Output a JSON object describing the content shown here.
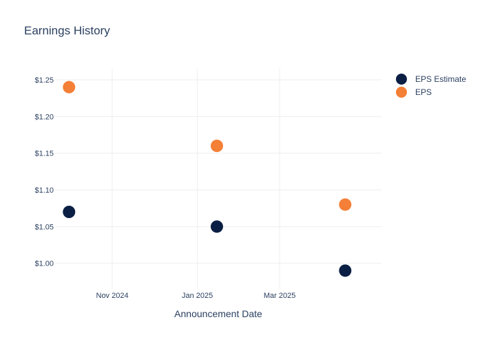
{
  "chart_data": {
    "type": "scatter",
    "title": "Earnings History",
    "xlabel": "Announcement Date",
    "ylabel": "",
    "x_ticks": [
      "2024-11-01",
      "2025-01-01",
      "2025-03-01"
    ],
    "x_tick_labels": [
      "Nov 2024",
      "Jan 2025",
      "Mar 2025"
    ],
    "xlim": [
      "2024-09-21",
      "2025-05-13"
    ],
    "ylim": [
      0.965,
      1.265
    ],
    "y_ticks": [
      1.0,
      1.05,
      1.1,
      1.15,
      1.2,
      1.25
    ],
    "y_tick_labels": [
      "$1.00",
      "$1.05",
      "$1.10",
      "$1.15",
      "$1.20",
      "$1.25"
    ],
    "grid": true,
    "legend_position": "top-right",
    "series": [
      {
        "name": "EPS Estimate",
        "color": "#0b1f44",
        "points": [
          {
            "x": "2024-10-01",
            "y": 1.07
          },
          {
            "x": "2025-01-15",
            "y": 1.05
          },
          {
            "x": "2025-04-17",
            "y": 0.99
          }
        ]
      },
      {
        "name": "EPS",
        "color": "#f47f37",
        "points": [
          {
            "x": "2024-10-01",
            "y": 1.24
          },
          {
            "x": "2025-01-15",
            "y": 1.16
          },
          {
            "x": "2025-04-17",
            "y": 1.08
          }
        ]
      }
    ]
  }
}
